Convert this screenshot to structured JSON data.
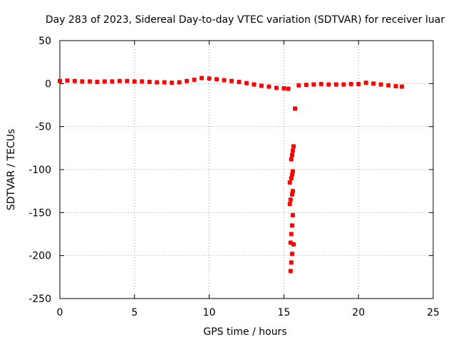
{
  "chart_data": {
    "type": "scatter",
    "title": "Day 283 of 2023, Sidereal Day-to-day VTEC variation (SDTVAR) for receiver luar",
    "xlabel": "GPS time / hours",
    "ylabel": "SDTVAR / TECUs",
    "xlim": [
      0,
      25
    ],
    "ylim": [
      -250,
      50
    ],
    "xticks": [
      0,
      5,
      10,
      15,
      20,
      25
    ],
    "yticks": [
      50,
      0,
      -50,
      -100,
      -150,
      -200,
      -250
    ],
    "grid": true,
    "color": "#ff0000",
    "series": [
      {
        "points": [
          [
            0.0,
            3
          ],
          [
            0.5,
            3.5
          ],
          [
            1.0,
            3
          ],
          [
            1.5,
            2.5
          ],
          [
            2.0,
            2.5
          ],
          [
            2.5,
            2
          ],
          [
            3.0,
            2.5
          ],
          [
            3.5,
            2.5
          ],
          [
            4.0,
            3
          ],
          [
            4.5,
            3
          ],
          [
            5.0,
            2.5
          ],
          [
            5.5,
            2.5
          ],
          [
            6.0,
            2
          ],
          [
            6.5,
            1.5
          ],
          [
            7.0,
            1.5
          ],
          [
            7.5,
            1
          ],
          [
            8.0,
            1.5
          ],
          [
            8.5,
            3
          ],
          [
            9.0,
            4.5
          ],
          [
            9.5,
            6.5
          ],
          [
            10.0,
            6
          ],
          [
            10.5,
            5
          ],
          [
            11.0,
            4
          ],
          [
            11.5,
            3
          ],
          [
            12.0,
            2
          ],
          [
            12.5,
            0.5
          ],
          [
            13.0,
            -1
          ],
          [
            13.5,
            -2.5
          ],
          [
            14.0,
            -3.5
          ],
          [
            14.5,
            -5
          ],
          [
            15.0,
            -5.5
          ],
          [
            15.3,
            -6
          ],
          [
            15.5,
            -88
          ],
          [
            15.55,
            -83
          ],
          [
            15.6,
            -78
          ],
          [
            15.65,
            -73
          ],
          [
            15.4,
            -115
          ],
          [
            15.5,
            -110
          ],
          [
            15.55,
            -106
          ],
          [
            15.6,
            -102
          ],
          [
            15.4,
            -140
          ],
          [
            15.45,
            -135
          ],
          [
            15.55,
            -129
          ],
          [
            15.6,
            -125
          ],
          [
            15.45,
            -185
          ],
          [
            15.5,
            -175
          ],
          [
            15.55,
            -165
          ],
          [
            15.6,
            -153
          ],
          [
            15.45,
            -218
          ],
          [
            15.5,
            -208
          ],
          [
            15.55,
            -198
          ],
          [
            15.65,
            -187
          ],
          [
            15.75,
            -29
          ],
          [
            16.0,
            -2
          ],
          [
            16.5,
            -1.5
          ],
          [
            17.0,
            -1
          ],
          [
            17.5,
            -0.5
          ],
          [
            18.0,
            -1
          ],
          [
            18.5,
            -1
          ],
          [
            19.0,
            -1
          ],
          [
            19.5,
            -0.5
          ],
          [
            20.0,
            -0.5
          ],
          [
            20.5,
            1
          ],
          [
            21.0,
            0
          ],
          [
            21.5,
            -1
          ],
          [
            22.0,
            -2
          ],
          [
            22.5,
            -3
          ],
          [
            22.9,
            -3.5
          ]
        ]
      }
    ]
  }
}
